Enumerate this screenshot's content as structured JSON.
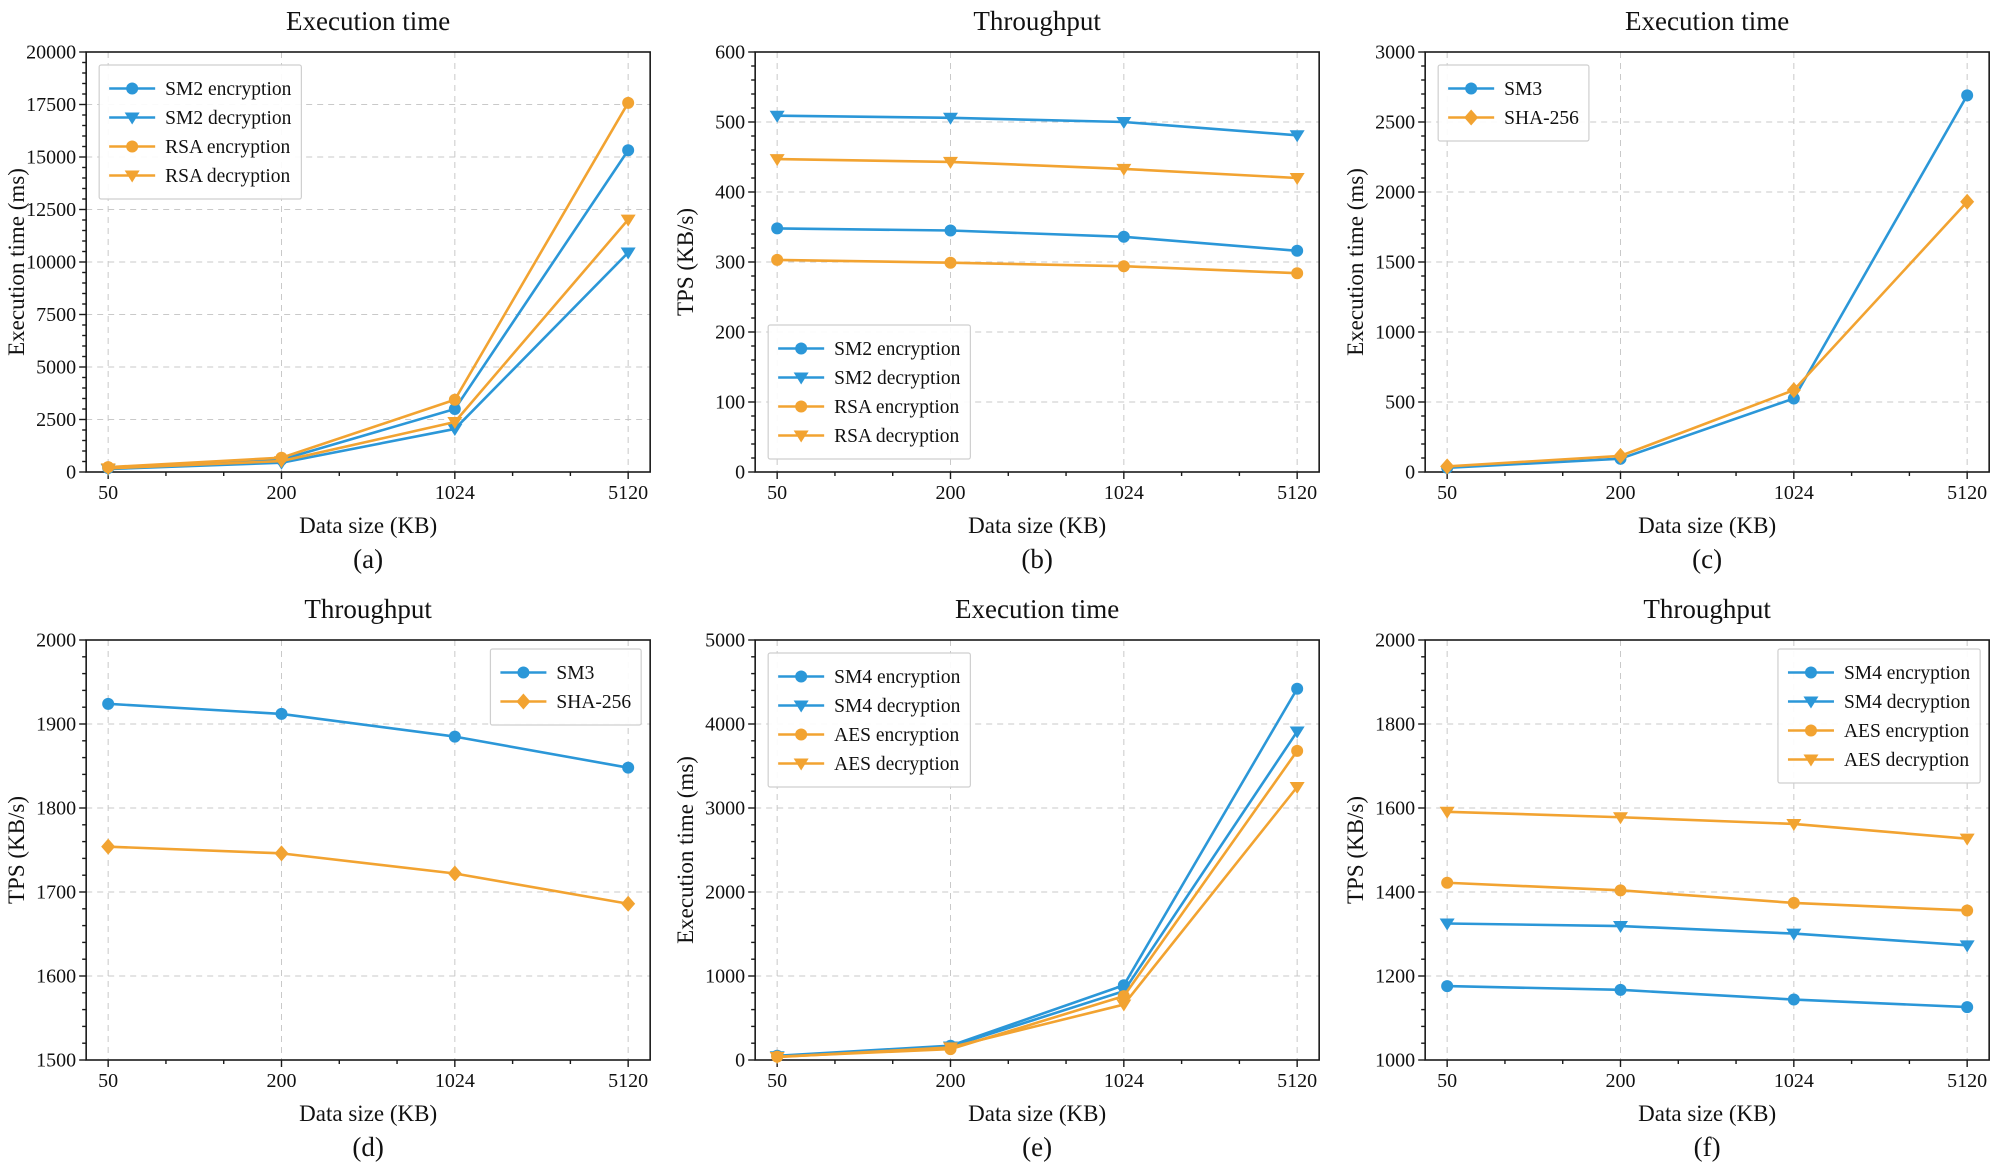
{
  "palette": {
    "blue": "#2b97d8",
    "orange": "#f2a331",
    "grid": "#c9c9c9",
    "axis": "#1a1a1a"
  },
  "chart_data": [
    {
      "id": "a",
      "type": "line",
      "caption": "(a)",
      "title": "Execution time",
      "xlabel": "Data size (KB)",
      "ylabel": "Execution time (ms)",
      "categories": [
        "50",
        "200",
        "1024",
        "5120"
      ],
      "ylim": [
        0,
        20000
      ],
      "ytick_step": 2500,
      "grid": true,
      "legend_pos": "upper-left",
      "series": [
        {
          "name": "SM2 encryption",
          "color": "blue",
          "marker": "circle",
          "values": [
            190,
            590,
            3000,
            15320
          ]
        },
        {
          "name": "SM2 decryption",
          "color": "blue",
          "marker": "triangle-down",
          "values": [
            140,
            440,
            2050,
            10450
          ]
        },
        {
          "name": "RSA encryption",
          "color": "orange",
          "marker": "circle",
          "values": [
            230,
            680,
            3440,
            17580
          ]
        },
        {
          "name": "RSA decryption",
          "color": "orange",
          "marker": "triangle-down",
          "values": [
            170,
            520,
            2380,
            12020
          ]
        }
      ]
    },
    {
      "id": "b",
      "type": "line",
      "caption": "(b)",
      "title": "Throughput",
      "xlabel": "Data size (KB)",
      "ylabel": "TPS (KB/s)",
      "categories": [
        "50",
        "200",
        "1024",
        "5120"
      ],
      "ylim": [
        0,
        600
      ],
      "ytick_step": 100,
      "grid": true,
      "legend_pos": "lower-left",
      "series": [
        {
          "name": "SM2 encryption",
          "color": "blue",
          "marker": "circle",
          "values": [
            348,
            345,
            336,
            316
          ]
        },
        {
          "name": "SM2 decryption",
          "color": "blue",
          "marker": "triangle-down",
          "values": [
            509,
            506,
            500,
            481
          ]
        },
        {
          "name": "RSA encryption",
          "color": "orange",
          "marker": "circle",
          "values": [
            303,
            299,
            294,
            284
          ]
        },
        {
          "name": "RSA decryption",
          "color": "orange",
          "marker": "triangle-down",
          "values": [
            447,
            443,
            433,
            420
          ]
        }
      ]
    },
    {
      "id": "c",
      "type": "line",
      "caption": "(c)",
      "title": "Execution time",
      "xlabel": "Data size (KB)",
      "ylabel": "Execution time (ms)",
      "categories": [
        "50",
        "200",
        "1024",
        "5120"
      ],
      "ylim": [
        0,
        3000
      ],
      "ytick_step": 500,
      "grid": true,
      "legend_pos": "upper-left",
      "series": [
        {
          "name": "SM3",
          "color": "blue",
          "marker": "circle",
          "values": [
            30,
            95,
            525,
            2690
          ]
        },
        {
          "name": "SHA-256",
          "color": "orange",
          "marker": "diamond",
          "values": [
            40,
            115,
            585,
            1930
          ]
        }
      ]
    },
    {
      "id": "d",
      "type": "line",
      "caption": "(d)",
      "title": "Throughput",
      "xlabel": "Data size (KB)",
      "ylabel": "TPS (KB/s)",
      "categories": [
        "50",
        "200",
        "1024",
        "5120"
      ],
      "ylim": [
        1500,
        2000
      ],
      "ytick_step": 100,
      "grid": true,
      "legend_pos": "upper-right",
      "series": [
        {
          "name": "SM3",
          "color": "blue",
          "marker": "circle",
          "values": [
            1924,
            1912,
            1885,
            1848
          ]
        },
        {
          "name": "SHA-256",
          "color": "orange",
          "marker": "diamond",
          "values": [
            1754,
            1746,
            1722,
            1686
          ]
        }
      ]
    },
    {
      "id": "e",
      "type": "line",
      "caption": "(e)",
      "title": "Execution time",
      "xlabel": "Data size (KB)",
      "ylabel": "Execution time (ms)",
      "categories": [
        "50",
        "200",
        "1024",
        "5120"
      ],
      "ylim": [
        0,
        5000
      ],
      "ytick_step": 1000,
      "grid": true,
      "legend_pos": "upper-left",
      "series": [
        {
          "name": "SM4 encryption",
          "color": "blue",
          "marker": "circle",
          "values": [
            50,
            170,
            890,
            4420
          ]
        },
        {
          "name": "SM4 decryption",
          "color": "blue",
          "marker": "triangle-down",
          "values": [
            45,
            160,
            820,
            3910
          ]
        },
        {
          "name": "AES encryption",
          "color": "orange",
          "marker": "circle",
          "values": [
            40,
            130,
            760,
            3680
          ]
        },
        {
          "name": "AES decryption",
          "color": "orange",
          "marker": "triangle-down",
          "values": [
            35,
            150,
            660,
            3250
          ]
        }
      ]
    },
    {
      "id": "f",
      "type": "line",
      "caption": "(f)",
      "title": "Throughput",
      "xlabel": "Data size (KB)",
      "ylabel": "TPS (KB/s)",
      "categories": [
        "50",
        "200",
        "1024",
        "5120"
      ],
      "ylim": [
        1000,
        2000
      ],
      "ytick_step": 200,
      "grid": true,
      "legend_pos": "upper-right",
      "series": [
        {
          "name": "SM4 encryption",
          "color": "blue",
          "marker": "circle",
          "values": [
            1176,
            1167,
            1144,
            1126
          ]
        },
        {
          "name": "SM4 decryption",
          "color": "blue",
          "marker": "triangle-down",
          "values": [
            1325,
            1319,
            1301,
            1273
          ]
        },
        {
          "name": "AES encryption",
          "color": "orange",
          "marker": "circle",
          "values": [
            1422,
            1404,
            1374,
            1356
          ]
        },
        {
          "name": "AES decryption",
          "color": "orange",
          "marker": "triangle-down",
          "values": [
            1591,
            1578,
            1562,
            1527
          ]
        }
      ]
    }
  ]
}
